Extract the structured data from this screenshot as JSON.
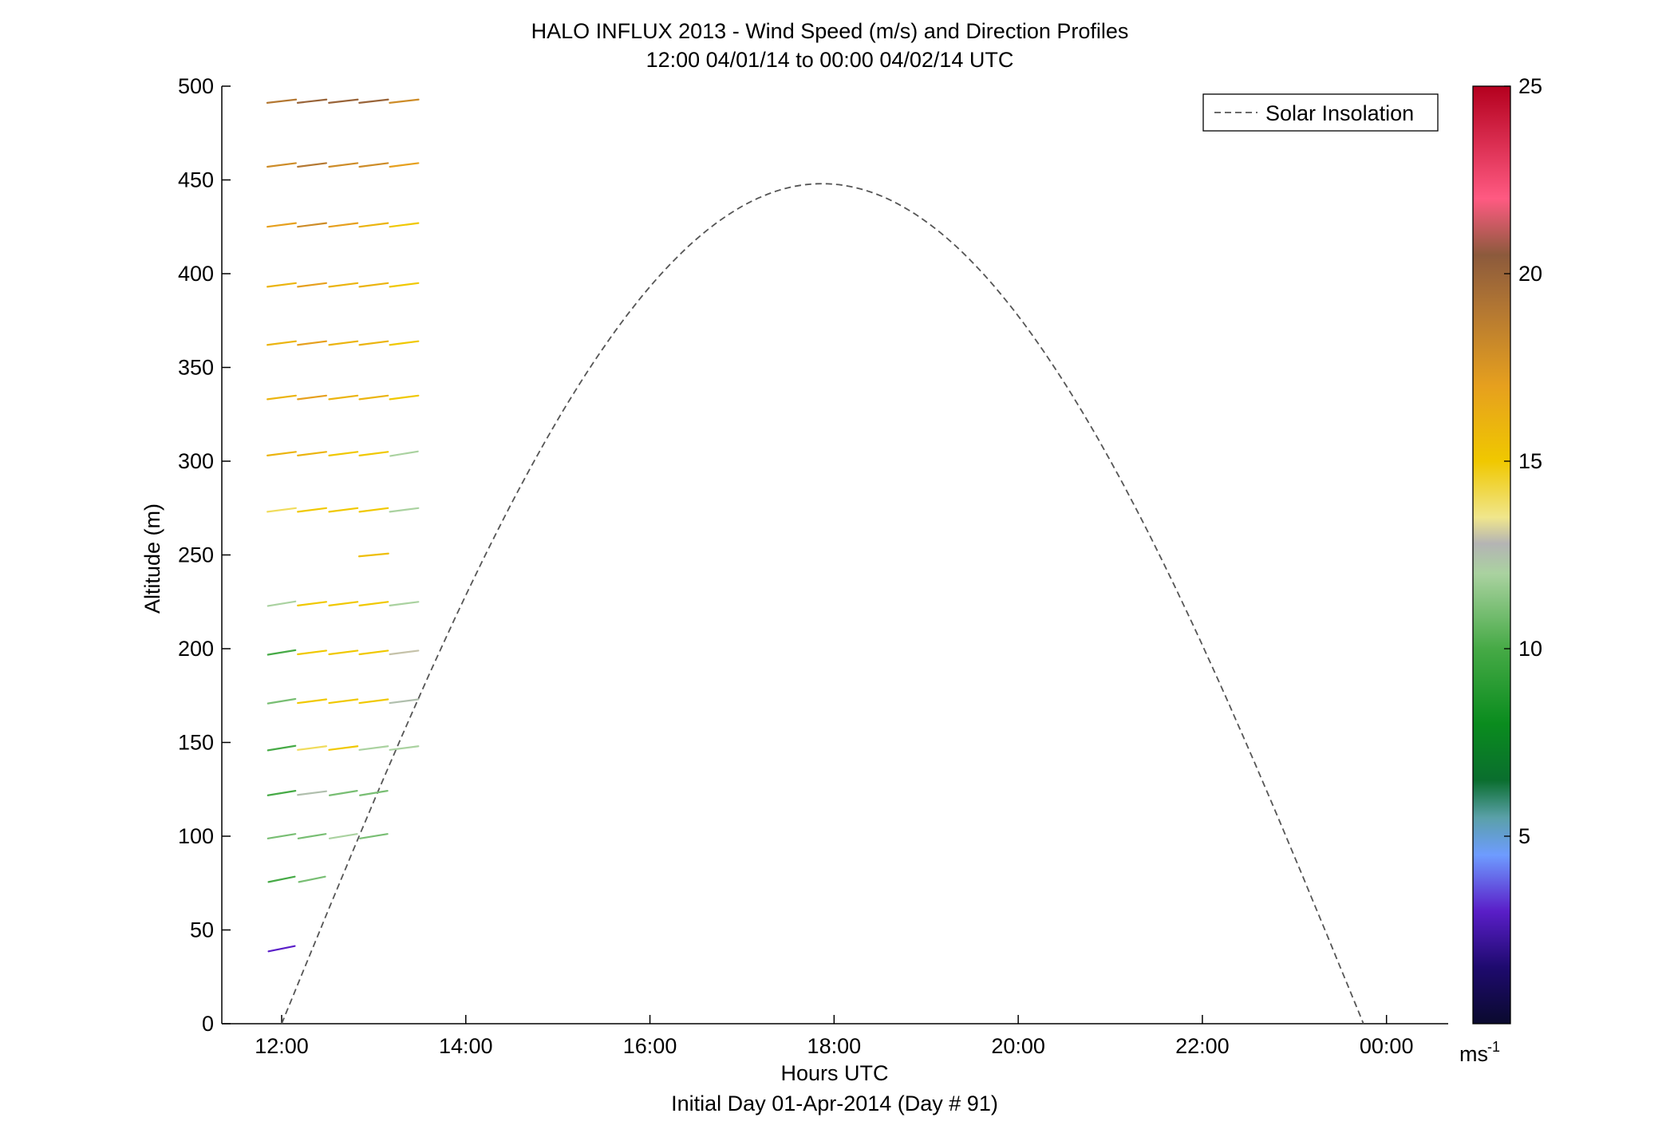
{
  "chart_data": {
    "type": "wind-barb-profile",
    "title": "HALO INFLUX 2013 - Wind Speed (m/s) and Direction Profiles",
    "subtitle": "12:00 04/01/14 to 00:00 04/02/14  UTC",
    "xlabel": "Hours UTC",
    "xlabel2": "Initial Day 01-Apr-2014 (Day # 91)",
    "ylabel": "Altitude (m)",
    "xlim_hours": [
      11.35,
      24.67
    ],
    "ylim": [
      0,
      500
    ],
    "xticks": [
      {
        "h": 12,
        "label": "12:00"
      },
      {
        "h": 14,
        "label": "14:00"
      },
      {
        "h": 16,
        "label": "16:00"
      },
      {
        "h": 18,
        "label": "18:00"
      },
      {
        "h": 20,
        "label": "20:00"
      },
      {
        "h": 22,
        "label": "22:00"
      },
      {
        "h": 24,
        "label": "00:00"
      }
    ],
    "yticks": [
      0,
      50,
      100,
      150,
      200,
      250,
      300,
      350,
      400,
      450,
      500
    ],
    "legend": {
      "label": "Solar Insolation",
      "position": "top-right"
    },
    "solar_insolation": {
      "start_h": 12.0,
      "peak_h": 17.87,
      "end_h": 23.75,
      "peak_alt": 448
    },
    "colorbar": {
      "min": 0,
      "max": 25,
      "ticks": [
        5,
        10,
        15,
        20,
        25
      ],
      "unit_label": "ms",
      "unit_exp": "-1",
      "stops": [
        {
          "v": 0,
          "c": "#0a0a2e"
        },
        {
          "v": 1.5,
          "c": "#1e0a6e"
        },
        {
          "v": 3,
          "c": "#5a1ec8"
        },
        {
          "v": 4.5,
          "c": "#6e9cff"
        },
        {
          "v": 5.5,
          "c": "#5aa0a8"
        },
        {
          "v": 6.5,
          "c": "#0a6e2e"
        },
        {
          "v": 8,
          "c": "#0a8c1e"
        },
        {
          "v": 10,
          "c": "#46aa46"
        },
        {
          "v": 12,
          "c": "#aad2a0"
        },
        {
          "v": 12.8,
          "c": "#b4b4b4"
        },
        {
          "v": 13.5,
          "c": "#f0e68c"
        },
        {
          "v": 15,
          "c": "#f0c800"
        },
        {
          "v": 17,
          "c": "#e6a01e"
        },
        {
          "v": 19,
          "c": "#b47832"
        },
        {
          "v": 20.5,
          "c": "#8c5a3c"
        },
        {
          "v": 22,
          "c": "#ff5a82"
        },
        {
          "v": 25,
          "c": "#b4001e"
        }
      ]
    },
    "altitudes": [
      40,
      77,
      100,
      123,
      147,
      172,
      198,
      224,
      250,
      274,
      304,
      334,
      363,
      394,
      426,
      458,
      492
    ],
    "series": [
      {
        "name": "early",
        "hours": [
          12.0,
          12.33,
          12.67,
          13.0,
          13.33
        ],
        "profiles": [
          {
            "alt": 40,
            "speeds": [
              3,
              null,
              null,
              null,
              null
            ],
            "dirs": [
              240,
              null,
              null,
              null,
              null
            ]
          },
          {
            "alt": 77,
            "speeds": [
              10,
              11,
              null,
              null,
              null
            ],
            "dirs": [
              240,
              240,
              null,
              null,
              null
            ]
          },
          {
            "alt": 100,
            "speeds": [
              11,
              11,
              12,
              11,
              null
            ],
            "dirs": [
              245,
              245,
              245,
              245,
              null
            ]
          },
          {
            "alt": 123,
            "speeds": [
              10,
              12.5,
              11,
              11,
              null
            ],
            "dirs": [
              245,
              250,
              245,
              245,
              null
            ]
          },
          {
            "alt": 147,
            "speeds": [
              10,
              14,
              15,
              12,
              12
            ],
            "dirs": [
              245,
              250,
              250,
              250,
              250
            ]
          },
          {
            "alt": 172,
            "speeds": [
              11,
              15,
              15,
              15,
              12.5
            ],
            "dirs": [
              245,
              250,
              250,
              250,
              250
            ]
          },
          {
            "alt": 198,
            "speeds": [
              10,
              15,
              15,
              15,
              13
            ],
            "dirs": [
              245,
              250,
              250,
              250,
              250
            ]
          },
          {
            "alt": 224,
            "speeds": [
              12,
              15,
              15,
              15,
              12
            ],
            "dirs": [
              245,
              250,
              250,
              250,
              250
            ]
          },
          {
            "alt": 250,
            "speeds": [
              null,
              null,
              null,
              15.5,
              null
            ],
            "dirs": [
              null,
              null,
              null,
              255,
              null
            ]
          },
          {
            "alt": 274,
            "speeds": [
              14,
              15,
              15,
              15,
              12
            ],
            "dirs": [
              250,
              250,
              250,
              250,
              250
            ]
          },
          {
            "alt": 304,
            "speeds": [
              16,
              16,
              15,
              15,
              12
            ],
            "dirs": [
              250,
              250,
              250,
              250,
              245
            ]
          },
          {
            "alt": 334,
            "speeds": [
              16,
              17,
              16,
              16,
              15
            ],
            "dirs": [
              250,
              250,
              250,
              250,
              250
            ]
          },
          {
            "alt": 363,
            "speeds": [
              16,
              17,
              16,
              16,
              15
            ],
            "dirs": [
              250,
              250,
              250,
              250,
              250
            ]
          },
          {
            "alt": 394,
            "speeds": [
              16,
              17,
              16,
              16,
              15
            ],
            "dirs": [
              250,
              250,
              250,
              250,
              250
            ]
          },
          {
            "alt": 426,
            "speeds": [
              17,
              18,
              17,
              16,
              15
            ],
            "dirs": [
              250,
              250,
              250,
              250,
              250
            ]
          },
          {
            "alt": 458,
            "speeds": [
              18,
              19,
              18,
              18,
              17
            ],
            "dirs": [
              250,
              250,
              250,
              250,
              250
            ]
          },
          {
            "alt": 492,
            "speeds": [
              19,
              20,
              20,
              20,
              18
            ],
            "dirs": [
              252,
              252,
              252,
              252,
              252
            ]
          }
        ]
      }
    ]
  }
}
